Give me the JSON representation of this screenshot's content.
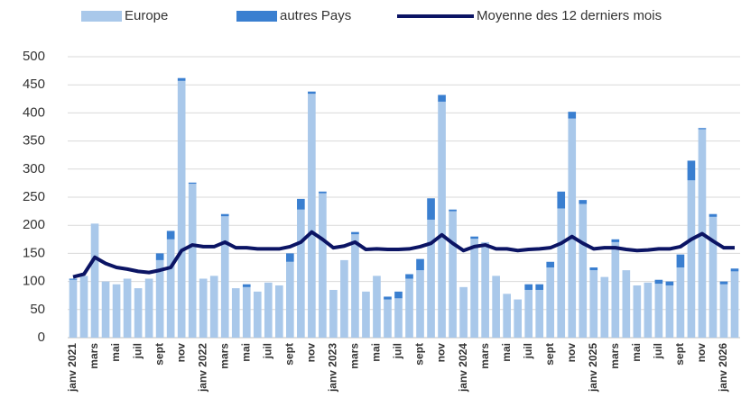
{
  "chart_data": {
    "type": "bar",
    "stacked": true,
    "categories": [
      "janv 2021",
      null,
      "mars",
      null,
      "mai",
      null,
      "juil",
      null,
      "sept",
      null,
      "nov",
      null,
      "janv 2022",
      null,
      "mars",
      null,
      "mai",
      null,
      "juil",
      null,
      "sept",
      null,
      "nov",
      null,
      "janv 2023",
      null,
      "mars",
      null,
      "mai",
      null,
      "juil",
      null,
      "sept",
      null,
      "nov",
      null,
      "janv 2024",
      null,
      "mars",
      null,
      "mai",
      null,
      "juil",
      null,
      "sept",
      null,
      "nov",
      null,
      "janv 2025",
      null,
      "mars",
      null,
      "mai",
      null,
      "juil",
      null,
      "sept",
      null,
      "nov",
      null,
      "janv 2026",
      null
    ],
    "series": [
      {
        "name": "Europe",
        "color": "#a9c8ea",
        "type": "bar",
        "values": [
          103,
          110,
          203,
          100,
          95,
          105,
          88,
          105,
          138,
          175,
          457,
          274,
          105,
          110,
          216,
          88,
          90,
          82,
          98,
          93,
          135,
          228,
          434,
          257,
          85,
          138,
          184,
          82,
          110,
          68,
          70,
          105,
          120,
          210,
          420,
          225,
          90,
          176,
          170,
          110,
          78,
          68,
          85,
          85,
          125,
          230,
          390,
          238,
          120,
          108,
          170,
          120,
          93,
          98,
          96,
          93,
          125,
          280,
          371,
          215,
          95,
          118
        ]
      },
      {
        "name": "autres Pays",
        "color": "#3a7fd0",
        "type": "bar",
        "values": [
          2,
          0,
          0,
          0,
          0,
          0,
          0,
          0,
          12,
          15,
          5,
          2,
          0,
          0,
          4,
          0,
          5,
          0,
          0,
          0,
          15,
          19,
          4,
          3,
          0,
          0,
          4,
          0,
          0,
          5,
          12,
          8,
          20,
          38,
          12,
          3,
          0,
          4,
          0,
          0,
          0,
          0,
          10,
          10,
          10,
          30,
          12,
          7,
          5,
          0,
          5,
          0,
          0,
          0,
          7,
          7,
          23,
          35,
          2,
          5,
          5,
          5
        ]
      },
      {
        "name": "Moyenne des 12 derniers mois",
        "color": "#0b1464",
        "type": "line",
        "values": [
          108,
          113,
          143,
          132,
          125,
          122,
          118,
          116,
          120,
          125,
          155,
          165,
          162,
          162,
          170,
          160,
          160,
          158,
          158,
          158,
          162,
          170,
          188,
          175,
          160,
          163,
          170,
          157,
          158,
          157,
          157,
          158,
          162,
          168,
          183,
          168,
          155,
          162,
          165,
          158,
          158,
          155,
          157,
          158,
          160,
          168,
          180,
          168,
          158,
          160,
          160,
          157,
          155,
          156,
          158,
          158,
          162,
          175,
          185,
          172,
          160,
          160
        ]
      }
    ],
    "ylim": [
      0,
      500
    ],
    "yticks": [
      0,
      50,
      100,
      150,
      200,
      250,
      300,
      350,
      400,
      450,
      500
    ],
    "grid": true,
    "legend": "top"
  }
}
